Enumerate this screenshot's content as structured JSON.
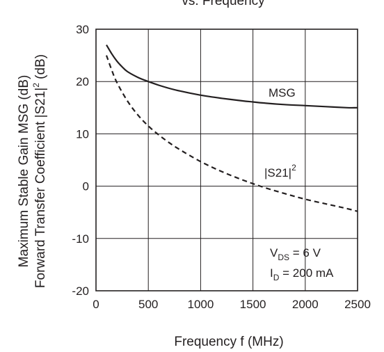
{
  "chart_data": {
    "type": "line",
    "title": "vs. Frequency",
    "xlabel": "Frequency  f (MHz)",
    "ylabel_line1": "Maximum Stable Gain MSG (dB)",
    "ylabel_line2_main": "Forward Transfer Coefficient  |S21|",
    "ylabel_line2_sup": "2",
    "ylabel_line2_tail": " (dB)",
    "xlim": [
      0,
      2500
    ],
    "ylim": [
      -20,
      30
    ],
    "xticks": [
      "0",
      "500",
      "1000",
      "1500",
      "2000",
      "2500"
    ],
    "yticks": [
      "30",
      "20",
      "10",
      "0",
      "-10",
      "-20"
    ],
    "xtick_values": [
      0,
      500,
      1000,
      1500,
      2000,
      2500
    ],
    "ytick_values": [
      30,
      20,
      10,
      0,
      -10,
      -20
    ],
    "grid": true,
    "series": [
      {
        "name": "MSG",
        "label_main": "MSG",
        "style": "solid",
        "x": [
          100,
          150,
          200,
          250,
          300,
          400,
          500,
          600,
          700,
          800,
          1000,
          1200,
          1400,
          1500,
          1600,
          1800,
          2000,
          2200,
          2400,
          2500
        ],
        "y": [
          27.0,
          25.3,
          23.9,
          22.8,
          21.9,
          20.8,
          20.0,
          19.3,
          18.7,
          18.2,
          17.4,
          16.8,
          16.3,
          16.1,
          15.9,
          15.6,
          15.4,
          15.2,
          15.0,
          15.0
        ]
      },
      {
        "name": "|S21|2",
        "label_main": "|S21|",
        "label_sup": "2",
        "style": "dashed",
        "x": [
          100,
          150,
          200,
          300,
          400,
          500,
          600,
          700,
          800,
          1000,
          1200,
          1400,
          1600,
          1800,
          2000,
          2200,
          2400,
          2500
        ],
        "y": [
          25.0,
          22.2,
          19.8,
          16.3,
          13.6,
          11.5,
          9.8,
          8.3,
          7.0,
          4.7,
          2.8,
          1.2,
          -0.2,
          -1.4,
          -2.5,
          -3.4,
          -4.3,
          -4.8
        ]
      }
    ],
    "annotation": {
      "line1_main": "V",
      "line1_sub": "DS",
      "line1_tail": " = 6 V",
      "line2_main": "I",
      "line2_sub": "D",
      "line2_tail": " = 200 mA"
    }
  }
}
